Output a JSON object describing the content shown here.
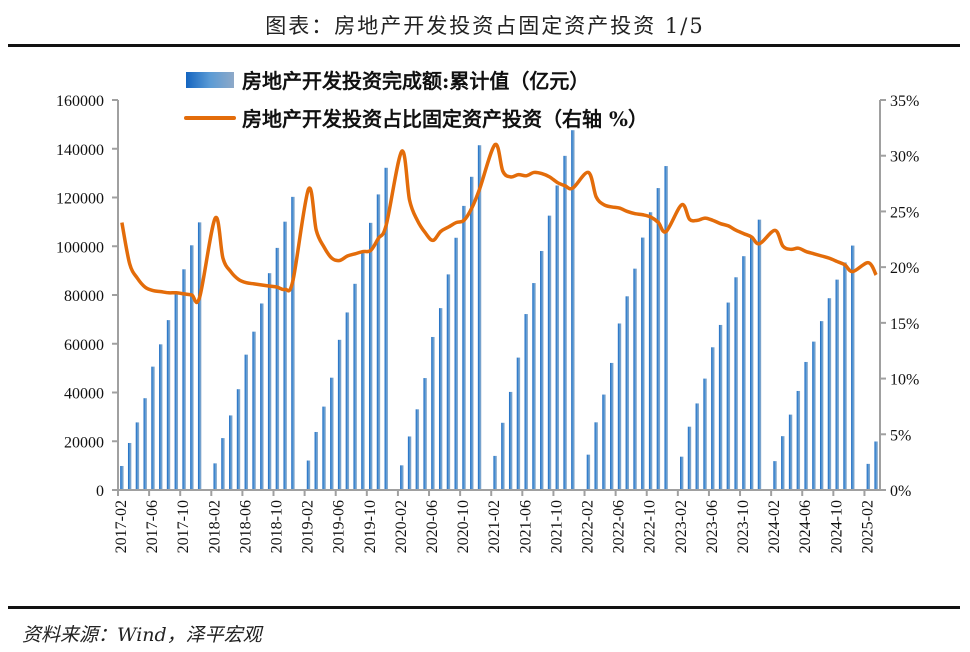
{
  "header": {
    "title": "图表：房地产开发投资占固定资产投资 1/5"
  },
  "footer": {
    "source": "资料来源：Wind，泽平宏观"
  },
  "chart_data": {
    "type": "bar+line",
    "title": "",
    "x_tick_labels": [
      "2017-02",
      "2017-06",
      "2017-10",
      "2018-02",
      "2018-06",
      "2018-10",
      "2019-02",
      "2019-06",
      "2019-10",
      "2020-02",
      "2020-06",
      "2020-10",
      "2021-02",
      "2021-06",
      "2021-10",
      "2022-02",
      "2022-06",
      "2022-10",
      "2023-02",
      "2023-06",
      "2023-10",
      "2024-02",
      "2024-06",
      "2024-10",
      "2025-02"
    ],
    "y_left": {
      "range": [
        0,
        160000
      ],
      "ticks": [
        "0",
        "20000",
        "40000",
        "60000",
        "80000",
        "100000",
        "120000",
        "140000",
        "160000"
      ]
    },
    "y_right": {
      "range": [
        0,
        35
      ],
      "ticks": [
        "0%",
        "5%",
        "10%",
        "15%",
        "20%",
        "25%",
        "30%",
        "35%"
      ]
    },
    "legend_position": "top",
    "colors": {
      "bar": "#2E75C8",
      "line": "#E36C0A",
      "axis": "#A0A0A0"
    },
    "months": [
      "2017-02",
      "2017-03",
      "2017-04",
      "2017-05",
      "2017-06",
      "2017-07",
      "2017-08",
      "2017-09",
      "2017-10",
      "2017-11",
      "2017-12",
      "2018-01",
      "2018-02",
      "2018-03",
      "2018-04",
      "2018-05",
      "2018-06",
      "2018-07",
      "2018-08",
      "2018-09",
      "2018-10",
      "2018-11",
      "2018-12",
      "2019-01",
      "2019-02",
      "2019-03",
      "2019-04",
      "2019-05",
      "2019-06",
      "2019-07",
      "2019-08",
      "2019-09",
      "2019-10",
      "2019-11",
      "2019-12",
      "2020-01",
      "2020-02",
      "2020-03",
      "2020-04",
      "2020-05",
      "2020-06",
      "2020-07",
      "2020-08",
      "2020-09",
      "2020-10",
      "2020-11",
      "2020-12",
      "2021-01",
      "2021-02",
      "2021-03",
      "2021-04",
      "2021-05",
      "2021-06",
      "2021-07",
      "2021-08",
      "2021-09",
      "2021-10",
      "2021-11",
      "2021-12",
      "2022-01",
      "2022-02",
      "2022-03",
      "2022-04",
      "2022-05",
      "2022-06",
      "2022-07",
      "2022-08",
      "2022-09",
      "2022-10",
      "2022-11",
      "2022-12",
      "2023-01",
      "2023-02",
      "2023-03",
      "2023-04",
      "2023-05",
      "2023-06",
      "2023-07",
      "2023-08",
      "2023-09",
      "2023-10",
      "2023-11",
      "2023-12",
      "2024-01",
      "2024-02",
      "2024-03",
      "2024-04",
      "2024-05",
      "2024-06",
      "2024-07",
      "2024-08",
      "2024-09",
      "2024-10",
      "2024-11",
      "2024-12",
      "2025-01",
      "2025-02",
      "2025-03"
    ],
    "series": [
      {
        "name": "房地产开发投资完成额:累计值（亿元）",
        "type": "bar",
        "axis": "left",
        "values": [
          9854,
          19292,
          27732,
          37656,
          50610,
          59761,
          69694,
          80644,
          90544,
          100387,
          109799,
          null,
          10927,
          21291,
          30592,
          41349,
          55531,
          64961,
          76519,
          88948,
          99325,
          110083,
          120264,
          null,
          12090,
          23803,
          34217,
          46075,
          61609,
          72843,
          84589,
          98008,
          109603,
          121265,
          132194,
          null,
          10115,
          21963,
          33103,
          45920,
          62780,
          74614,
          88454,
          103484,
          116556,
          128492,
          141443,
          null,
          13986,
          27576,
          40240,
          54318,
          72179,
          84895,
          98060,
          112559,
          124934,
          137086,
          147602,
          null,
          14499,
          27765,
          39154,
          52134,
          68314,
          79462,
          90809,
          103559,
          113945,
          123863,
          132895,
          null,
          13669,
          25974,
          35514,
          45701,
          58550,
          67717,
          76900,
          87269,
          95922,
          104045,
          110913,
          null,
          11842,
          22082,
          30928,
          40632,
          52529,
          60877,
          69284,
          78680,
          86309,
          93362,
          100280,
          null,
          10720,
          19904
        ]
      },
      {
        "name": "房地产开发投资占比固定资产投资（右轴 %）",
        "type": "line",
        "axis": "right",
        "values": [
          24.0,
          20.3,
          19.0,
          18.2,
          17.9,
          17.8,
          17.7,
          17.7,
          17.6,
          17.5,
          17.3,
          null,
          24.4,
          20.8,
          19.6,
          18.9,
          18.6,
          18.5,
          18.4,
          18.3,
          18.2,
          18.0,
          18.8,
          null,
          27.0,
          23.3,
          21.8,
          20.8,
          20.6,
          21.0,
          21.2,
          21.4,
          21.5,
          22.6,
          23.8,
          null,
          30.4,
          26.0,
          24.2,
          23.1,
          22.4,
          23.2,
          23.6,
          24.0,
          24.2,
          25.3,
          27.0,
          null,
          31.0,
          28.6,
          28.1,
          28.3,
          28.2,
          28.5,
          28.4,
          28.1,
          27.6,
          27.3,
          27.1,
          null,
          28.5,
          26.3,
          25.6,
          25.4,
          25.3,
          25.0,
          24.8,
          24.7,
          24.5,
          24.0,
          23.2,
          null,
          25.6,
          24.3,
          24.2,
          24.4,
          24.2,
          23.9,
          23.7,
          23.3,
          23.0,
          22.7,
          22.1,
          null,
          23.3,
          21.9,
          21.6,
          21.7,
          21.4,
          21.2,
          21.0,
          20.8,
          20.5,
          20.2,
          19.6,
          null,
          20.4,
          19.3
        ]
      }
    ]
  }
}
